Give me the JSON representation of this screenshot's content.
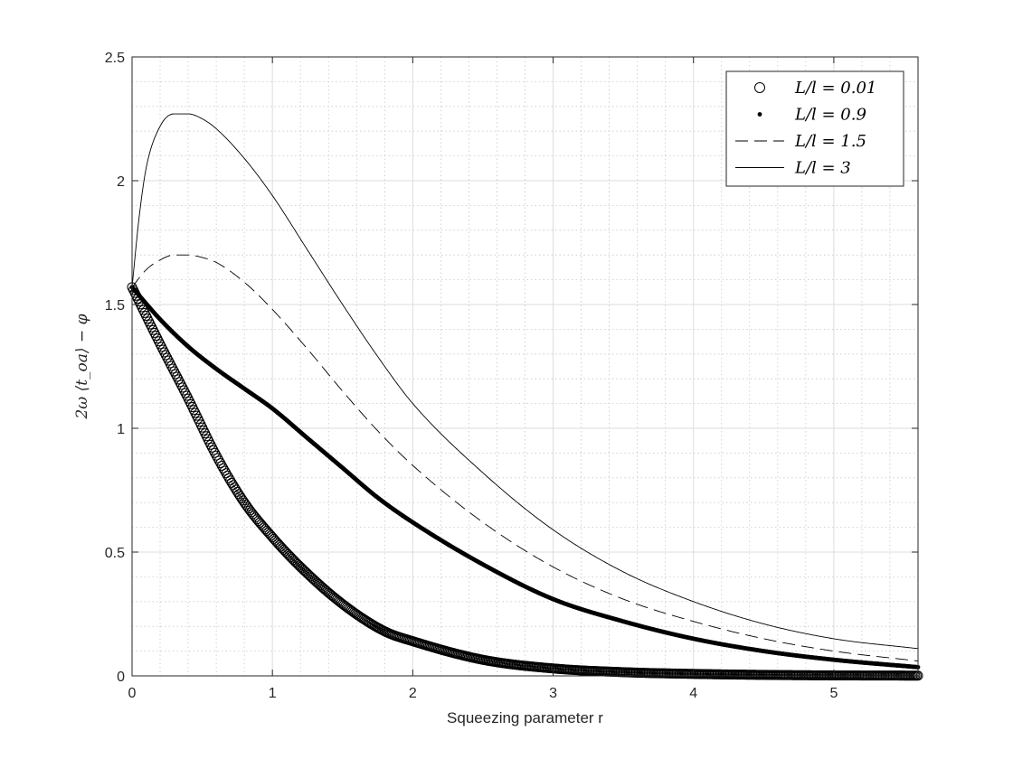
{
  "chart_data": {
    "type": "line",
    "xlabel": "Squeezing parameter r",
    "ylabel": "2ω ⟨t_oa⟩ − φ",
    "xlim": [
      0,
      5.6
    ],
    "ylim": [
      0,
      2.5
    ],
    "xticks": [
      0,
      1,
      2,
      3,
      4,
      5
    ],
    "yticks": [
      0,
      0.5,
      1,
      1.5,
      2,
      2.5
    ],
    "xtick_labels": [
      "0",
      "1",
      "2",
      "3",
      "4",
      "5"
    ],
    "ytick_labels": [
      "0",
      "0.5",
      "1",
      "1.5",
      "2",
      "2.5"
    ],
    "grid": true,
    "minor_grid": true,
    "legend_position": "top-right",
    "series": [
      {
        "name": "L/l = 0.01",
        "marker": "circle",
        "x": [
          0,
          0.2,
          0.4,
          0.6,
          0.8,
          1.0,
          1.2,
          1.5,
          1.8,
          2.0,
          2.5,
          3.0,
          3.5,
          4.0,
          4.5,
          5.0,
          5.6
        ],
        "y": [
          1.57,
          1.34,
          1.12,
          0.89,
          0.7,
          0.56,
          0.44,
          0.29,
          0.18,
          0.14,
          0.065,
          0.03,
          0.015,
          0.008,
          0.004,
          0.002,
          0.001
        ]
      },
      {
        "name": "L/l = 0.9",
        "marker": "dot",
        "x": [
          0,
          0.2,
          0.4,
          0.6,
          0.8,
          1.0,
          1.25,
          1.5,
          1.75,
          2.0,
          2.5,
          3.0,
          3.5,
          4.0,
          4.5,
          5.0,
          5.6
        ],
        "y": [
          1.57,
          1.44,
          1.33,
          1.24,
          1.16,
          1.08,
          0.96,
          0.84,
          0.72,
          0.62,
          0.45,
          0.31,
          0.22,
          0.15,
          0.1,
          0.065,
          0.035
        ]
      },
      {
        "name": "L/l = 1.5",
        "marker": "none",
        "dash": "dashed",
        "x": [
          0,
          0.1,
          0.2,
          0.3,
          0.4,
          0.5,
          0.6,
          0.8,
          1.0,
          1.25,
          1.5,
          1.75,
          2.0,
          2.5,
          3.0,
          3.5,
          4.0,
          4.5,
          5.0,
          5.6
        ],
        "y": [
          1.57,
          1.64,
          1.68,
          1.7,
          1.7,
          1.69,
          1.67,
          1.59,
          1.48,
          1.32,
          1.15,
          0.99,
          0.85,
          0.62,
          0.44,
          0.31,
          0.22,
          0.15,
          0.1,
          0.06
        ]
      },
      {
        "name": "L/l = 3",
        "marker": "none",
        "dash": "solid",
        "x": [
          0,
          0.05,
          0.1,
          0.2,
          0.3,
          0.4,
          0.5,
          0.6,
          0.8,
          1.0,
          1.25,
          1.5,
          1.75,
          2.0,
          2.5,
          3.0,
          3.5,
          4.0,
          4.5,
          5.0,
          5.6
        ],
        "y": [
          1.57,
          1.85,
          2.05,
          2.22,
          2.27,
          2.27,
          2.25,
          2.21,
          2.09,
          1.94,
          1.72,
          1.5,
          1.29,
          1.1,
          0.82,
          0.59,
          0.42,
          0.3,
          0.21,
          0.15,
          0.11
        ]
      }
    ]
  }
}
